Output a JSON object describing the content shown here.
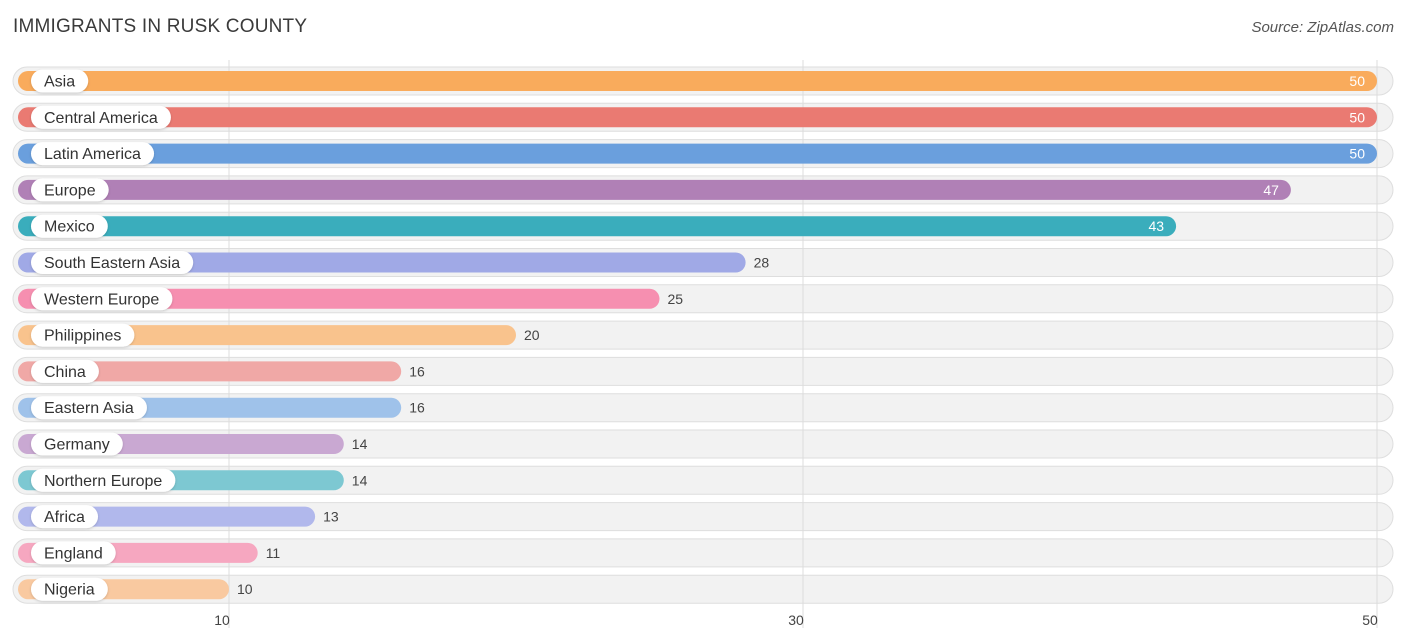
{
  "header": {
    "title": "IMMIGRANTS IN RUSK COUNTY",
    "source": "Source: ZipAtlas.com"
  },
  "chart_data": {
    "type": "bar",
    "orientation": "horizontal",
    "title": "IMMIGRANTS IN RUSK COUNTY",
    "xlabel": "",
    "ylabel": "",
    "categories": [
      "Asia",
      "Central America",
      "Latin America",
      "Europe",
      "Mexico",
      "South Eastern Asia",
      "Western Europe",
      "Philippines",
      "China",
      "Eastern Asia",
      "Germany",
      "Northern Europe",
      "Africa",
      "England",
      "Nigeria"
    ],
    "values": [
      50,
      50,
      50,
      47,
      43,
      28,
      25,
      20,
      16,
      16,
      14,
      14,
      13,
      11,
      10
    ],
    "colors": [
      "#f9ab5c",
      "#ea7a72",
      "#6a9fdd",
      "#b080b6",
      "#3aadbc",
      "#a0a9e6",
      "#f68fb0",
      "#f9c38d",
      "#f0a8a6",
      "#9fc2ea",
      "#c9a8d2",
      "#7dc8d2",
      "#b1b8ec",
      "#f6a7c0",
      "#f9c9a0"
    ],
    "value_labels_inside": [
      true,
      true,
      true,
      true,
      true,
      false,
      false,
      false,
      false,
      false,
      false,
      false,
      false,
      false,
      false
    ],
    "xticks": [
      10,
      30,
      50
    ],
    "xlim": [
      2.5,
      50.5
    ],
    "grid": true,
    "legend": "none"
  }
}
